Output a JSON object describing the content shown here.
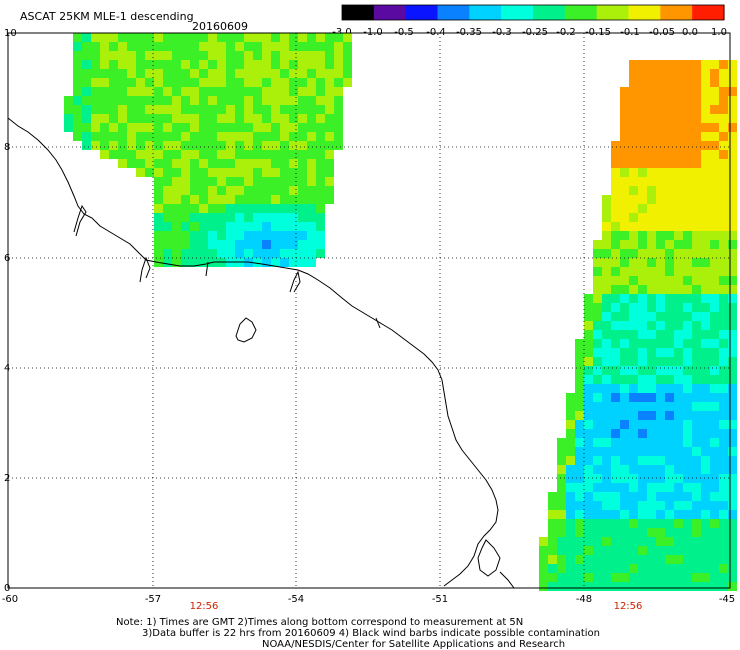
{
  "header": {
    "title": "ASCAT 25KM MLE-1 descending",
    "date": "20160609"
  },
  "colorbar": {
    "labels": [
      "-3.0",
      "-1.0",
      "-0.5",
      "-0.4",
      "-0.35",
      "-0.3",
      "-0.25",
      "-0.2",
      "-0.15",
      "-0.1",
      "-0.05",
      "0.0",
      "1.0"
    ],
    "colors": [
      "#000000",
      "#5a0aa0",
      "#0a14ff",
      "#0a82ff",
      "#00d2ff",
      "#00ffdc",
      "#00f08c",
      "#3cf028",
      "#aaf00a",
      "#f0f000",
      "#ff9600",
      "#ff1e00"
    ]
  },
  "axes": {
    "lon_labels": [
      "-60",
      "-57",
      "-54",
      "-51",
      "-48",
      "-45"
    ],
    "lat_labels": [
      "0",
      "2",
      "4",
      "6",
      "8",
      "10"
    ]
  },
  "pass_times": [
    "12:56",
    "12:56"
  ],
  "notes": {
    "line1": "Note: 1) Times are GMT 2)Times along bottom correspond to measurement at 5N",
    "line2": "3)Data buffer is 22 hrs from 20160609 4) Black wind barbs indicate possible contamination",
    "line3": "NOAA/NESDIS/Center for Satellite Applications and Research"
  }
}
